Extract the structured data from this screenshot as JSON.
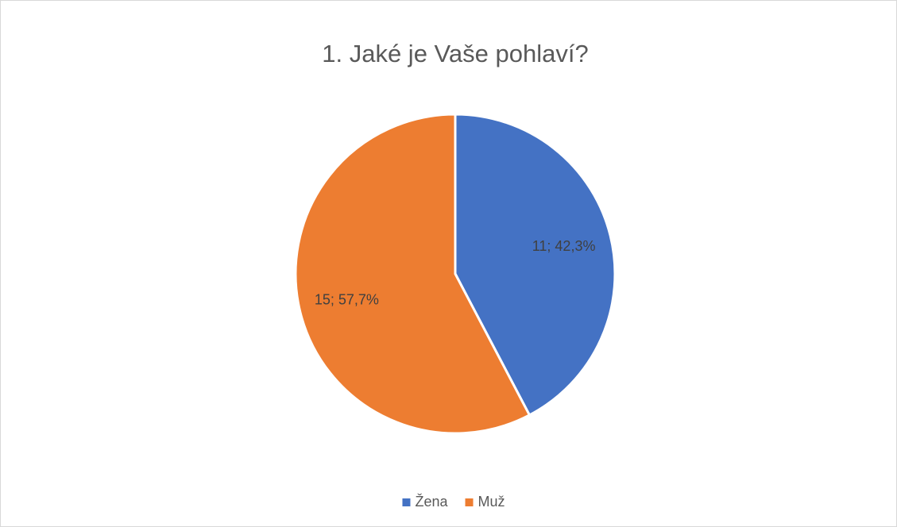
{
  "chart_data": {
    "type": "pie",
    "title": "1. Jaké je Vaše pohlaví?",
    "categories": [
      "Žena",
      "Muž"
    ],
    "values": [
      11,
      15
    ],
    "value_labels": [
      "11; 42,3%",
      "15; 57,7%"
    ],
    "colors": [
      "#4472c4",
      "#ed7d31"
    ],
    "legend": "bottom"
  }
}
